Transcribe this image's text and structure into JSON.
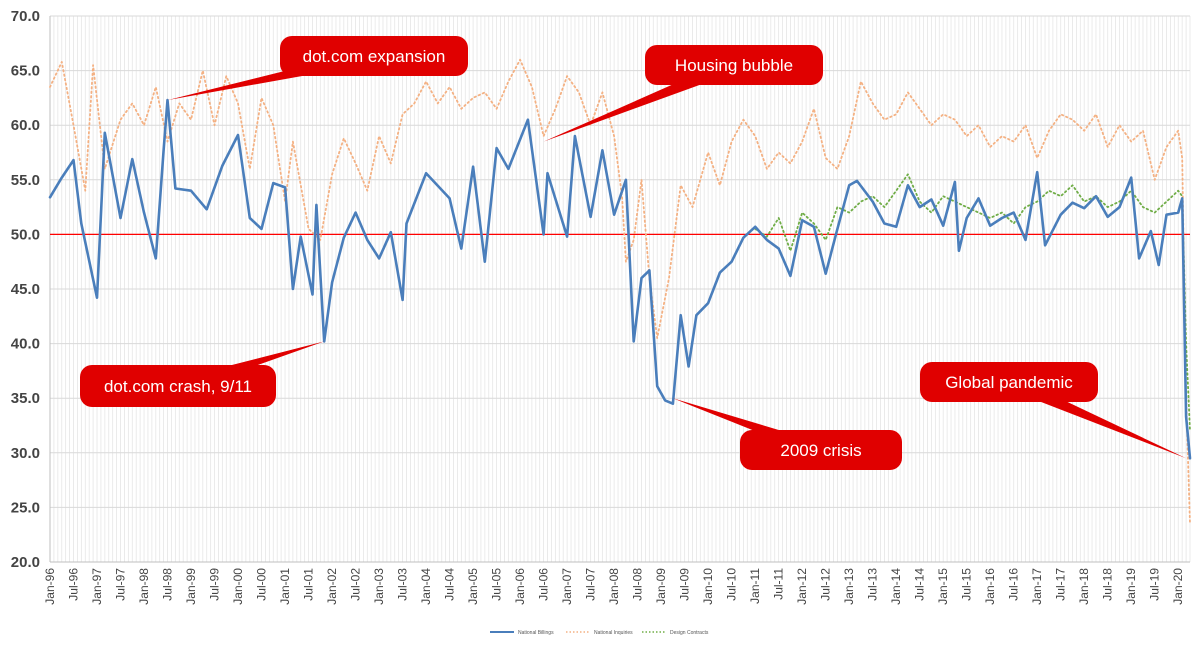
{
  "chart_data": {
    "type": "line",
    "title": "",
    "xlabel": "",
    "ylabel": "",
    "ylim": [
      20,
      70
    ],
    "yticks": [
      "20.0",
      "25.0",
      "30.0",
      "35.0",
      "40.0",
      "45.0",
      "50.0",
      "55.0",
      "60.0",
      "65.0",
      "70.0"
    ],
    "x_start": "Jan-96",
    "x_end": "Apr-20",
    "xticks": [
      "Jan-96",
      "Jul-96",
      "Jan-97",
      "Jul-97",
      "Jan-98",
      "Jul-98",
      "Jan-99",
      "Jul-99",
      "Jan-00",
      "Jul-00",
      "Jan-01",
      "Jul-01",
      "Jan-02",
      "Jul-02",
      "Jan-03",
      "Jul-03",
      "Jan-04",
      "Jul-04",
      "Jan-05",
      "Jul-05",
      "Jan-06",
      "Jul-06",
      "Jan-07",
      "Jul-07",
      "Jan-08",
      "Jul-08",
      "Jan-09",
      "Jul-09",
      "Jan-10",
      "Jul-10",
      "Jan-11",
      "Jul-11",
      "Jan-12",
      "Jul-12",
      "Jan-13",
      "Jul-13",
      "Jan-14",
      "Jul-14",
      "Jan-15",
      "Jul-15",
      "Jan-16",
      "Jul-16",
      "Jan-17",
      "Jul-17",
      "Jan-18",
      "Jul-18",
      "Jan-19",
      "Jul-19",
      "Jan-20"
    ],
    "grid": true,
    "legend_position": "bottom",
    "reference_line": {
      "y": 50,
      "color": "#ff0000"
    },
    "series": [
      {
        "name": "National Billings",
        "color": "#4a7ebb",
        "style": "solid",
        "points": [
          [
            "Jan-96",
            53.4
          ],
          [
            "Apr-96",
            55.2
          ],
          [
            "Jul-96",
            56.8
          ],
          [
            "Sep-96",
            51.0
          ],
          [
            "Jan-97",
            44.2
          ],
          [
            "Mar-97",
            59.3
          ],
          [
            "Jul-97",
            51.5
          ],
          [
            "Oct-97",
            56.9
          ],
          [
            "Jan-98",
            52.0
          ],
          [
            "Apr-98",
            47.8
          ],
          [
            "Jun-98",
            57.7
          ],
          [
            "Jul-98",
            62.3
          ],
          [
            "Sep-98",
            54.2
          ],
          [
            "Jan-99",
            54.0
          ],
          [
            "May-99",
            52.3
          ],
          [
            "Sep-99",
            56.3
          ],
          [
            "Jan-00",
            59.1
          ],
          [
            "Apr-00",
            51.5
          ],
          [
            "Jul-00",
            50.5
          ],
          [
            "Oct-00",
            54.7
          ],
          [
            "Jan-01",
            54.3
          ],
          [
            "Mar-01",
            45.0
          ],
          [
            "May-01",
            49.8
          ],
          [
            "Aug-01",
            44.5
          ],
          [
            "Sep-01",
            52.7
          ],
          [
            "Nov-01",
            40.2
          ],
          [
            "Jan-02",
            45.6
          ],
          [
            "Apr-02",
            49.7
          ],
          [
            "Jul-02",
            52.0
          ],
          [
            "Oct-02",
            49.5
          ],
          [
            "Jan-03",
            47.8
          ],
          [
            "Apr-03",
            50.2
          ],
          [
            "Jul-03",
            44.0
          ],
          [
            "Aug-03",
            51.0
          ],
          [
            "Jan-04",
            55.6
          ],
          [
            "Jul-04",
            53.3
          ],
          [
            "Oct-04",
            48.7
          ],
          [
            "Jan-05",
            56.2
          ],
          [
            "Apr-05",
            47.5
          ],
          [
            "Jul-05",
            57.9
          ],
          [
            "Oct-05",
            56.0
          ],
          [
            "Mar-06",
            60.5
          ],
          [
            "Jul-06",
            50.0
          ],
          [
            "Aug-06",
            55.6
          ],
          [
            "Jan-07",
            49.8
          ],
          [
            "Mar-07",
            59.0
          ],
          [
            "Jul-07",
            51.6
          ],
          [
            "Oct-07",
            57.7
          ],
          [
            "Jan-08",
            51.8
          ],
          [
            "Apr-08",
            55.0
          ],
          [
            "Jun-08",
            40.2
          ],
          [
            "Aug-08",
            46.0
          ],
          [
            "Oct-08",
            46.7
          ],
          [
            "Dec-08",
            36.1
          ],
          [
            "Feb-09",
            34.8
          ],
          [
            "Apr-09",
            34.5
          ],
          [
            "Jun-09",
            42.6
          ],
          [
            "Aug-09",
            37.9
          ],
          [
            "Oct-09",
            42.6
          ],
          [
            "Jan-10",
            43.7
          ],
          [
            "Apr-10",
            46.5
          ],
          [
            "Jul-10",
            47.5
          ],
          [
            "Oct-10",
            49.7
          ],
          [
            "Jan-11",
            50.7
          ],
          [
            "Apr-11",
            49.5
          ],
          [
            "Jul-11",
            48.7
          ],
          [
            "Oct-11",
            46.2
          ],
          [
            "Jan-12",
            51.3
          ],
          [
            "Apr-12",
            50.7
          ],
          [
            "Jul-12",
            46.4
          ],
          [
            "Oct-12",
            50.5
          ],
          [
            "Jan-13",
            54.5
          ],
          [
            "Mar-13",
            54.9
          ],
          [
            "Jul-13",
            53.0
          ],
          [
            "Oct-13",
            51.0
          ],
          [
            "Jan-14",
            50.7
          ],
          [
            "Apr-14",
            54.5
          ],
          [
            "Jul-14",
            52.5
          ],
          [
            "Oct-14",
            53.2
          ],
          [
            "Jan-15",
            50.8
          ],
          [
            "Apr-15",
            54.8
          ],
          [
            "May-15",
            48.5
          ],
          [
            "Jul-15",
            51.5
          ],
          [
            "Oct-15",
            53.3
          ],
          [
            "Jan-16",
            50.8
          ],
          [
            "Apr-16",
            51.5
          ],
          [
            "Jul-16",
            52.0
          ],
          [
            "Oct-16",
            49.5
          ],
          [
            "Jan-17",
            55.7
          ],
          [
            "Mar-17",
            49.0
          ],
          [
            "Jul-17",
            51.8
          ],
          [
            "Oct-17",
            52.9
          ],
          [
            "Jan-18",
            52.4
          ],
          [
            "Apr-18",
            53.5
          ],
          [
            "Jul-18",
            51.6
          ],
          [
            "Oct-18",
            52.5
          ],
          [
            "Jan-19",
            55.2
          ],
          [
            "Mar-19",
            47.8
          ],
          [
            "Jun-19",
            50.3
          ],
          [
            "Aug-19",
            47.2
          ],
          [
            "Oct-19",
            51.8
          ],
          [
            "Jan-20",
            52.0
          ],
          [
            "Feb-20",
            53.3
          ],
          [
            "Mar-20",
            33.3
          ],
          [
            "Apr-20",
            29.5
          ]
        ]
      },
      {
        "name": "National Inquiries",
        "color": "#f4b183",
        "style": "dotted",
        "points": [
          [
            "Jan-96",
            63.5
          ],
          [
            "Apr-96",
            65.8
          ],
          [
            "Jul-96",
            60.0
          ],
          [
            "Oct-96",
            54.0
          ],
          [
            "Dec-96",
            65.5
          ],
          [
            "Mar-97",
            56.0
          ],
          [
            "Jul-97",
            60.5
          ],
          [
            "Oct-97",
            62.0
          ],
          [
            "Jan-98",
            60.0
          ],
          [
            "Apr-98",
            63.5
          ],
          [
            "Jul-98",
            58.5
          ],
          [
            "Oct-98",
            62.0
          ],
          [
            "Jan-99",
            60.5
          ],
          [
            "Apr-99",
            65.0
          ],
          [
            "Jul-99",
            60.0
          ],
          [
            "Oct-99",
            64.5
          ],
          [
            "Jan-00",
            62.0
          ],
          [
            "Apr-00",
            56.0
          ],
          [
            "Jul-00",
            62.5
          ],
          [
            "Oct-00",
            60.0
          ],
          [
            "Jan-01",
            53.0
          ],
          [
            "Mar-01",
            58.5
          ],
          [
            "Jul-01",
            50.5
          ],
          [
            "Oct-01",
            49.5
          ],
          [
            "Jan-02",
            55.5
          ],
          [
            "Apr-02",
            58.8
          ],
          [
            "Jul-02",
            56.5
          ],
          [
            "Oct-02",
            54.0
          ],
          [
            "Jan-03",
            59.0
          ],
          [
            "Apr-03",
            56.5
          ],
          [
            "Jul-03",
            61.0
          ],
          [
            "Oct-03",
            62.0
          ],
          [
            "Jan-04",
            64.0
          ],
          [
            "Apr-04",
            62.0
          ],
          [
            "Jul-04",
            63.5
          ],
          [
            "Oct-04",
            61.5
          ],
          [
            "Jan-05",
            62.5
          ],
          [
            "Apr-05",
            63.0
          ],
          [
            "Jul-05",
            61.5
          ],
          [
            "Oct-05",
            64.0
          ],
          [
            "Jan-06",
            66.0
          ],
          [
            "Apr-06",
            63.5
          ],
          [
            "Jul-06",
            59.0
          ],
          [
            "Oct-06",
            61.5
          ],
          [
            "Jan-07",
            64.5
          ],
          [
            "Apr-07",
            63.0
          ],
          [
            "Jul-07",
            60.0
          ],
          [
            "Oct-07",
            63.0
          ],
          [
            "Jan-08",
            59.0
          ],
          [
            "Mar-08",
            53.5
          ],
          [
            "Apr-08",
            47.5
          ],
          [
            "Jun-08",
            49.5
          ],
          [
            "Aug-08",
            55.0
          ],
          [
            "Oct-08",
            46.0
          ],
          [
            "Dec-08",
            40.5
          ],
          [
            "Mar-09",
            46.0
          ],
          [
            "Jun-09",
            54.5
          ],
          [
            "Sep-09",
            52.5
          ],
          [
            "Jan-10",
            57.5
          ],
          [
            "Apr-10",
            54.5
          ],
          [
            "Jul-10",
            58.5
          ],
          [
            "Oct-10",
            60.5
          ],
          [
            "Jan-11",
            59.0
          ],
          [
            "Apr-11",
            56.0
          ],
          [
            "Jul-11",
            57.5
          ],
          [
            "Oct-11",
            56.5
          ],
          [
            "Jan-12",
            58.5
          ],
          [
            "Apr-12",
            61.5
          ],
          [
            "Jul-12",
            57.0
          ],
          [
            "Oct-12",
            56.0
          ],
          [
            "Jan-13",
            59.0
          ],
          [
            "Apr-13",
            64.0
          ],
          [
            "Jul-13",
            62.0
          ],
          [
            "Oct-13",
            60.5
          ],
          [
            "Jan-14",
            61.0
          ],
          [
            "Apr-14",
            63.0
          ],
          [
            "Jul-14",
            61.5
          ],
          [
            "Oct-14",
            60.0
          ],
          [
            "Jan-15",
            61.0
          ],
          [
            "Apr-15",
            60.5
          ],
          [
            "Jul-15",
            59.0
          ],
          [
            "Oct-15",
            60.0
          ],
          [
            "Jan-16",
            58.0
          ],
          [
            "Apr-16",
            59.0
          ],
          [
            "Jul-16",
            58.5
          ],
          [
            "Oct-16",
            60.0
          ],
          [
            "Jan-17",
            57.0
          ],
          [
            "Apr-17",
            59.5
          ],
          [
            "Jul-17",
            61.0
          ],
          [
            "Oct-17",
            60.5
          ],
          [
            "Jan-18",
            59.5
          ],
          [
            "Apr-18",
            61.0
          ],
          [
            "Jul-18",
            58.0
          ],
          [
            "Oct-18",
            60.0
          ],
          [
            "Jan-19",
            58.5
          ],
          [
            "Apr-19",
            59.5
          ],
          [
            "Jul-19",
            55.0
          ],
          [
            "Oct-19",
            58.0
          ],
          [
            "Jan-20",
            59.5
          ],
          [
            "Feb-20",
            57.0
          ],
          [
            "Mar-20",
            35.0
          ],
          [
            "Apr-20",
            23.5
          ]
        ]
      },
      {
        "name": "Design Contracts",
        "color": "#70ad47",
        "style": "dotted",
        "points": [
          [
            "Jan-11",
            50.5
          ],
          [
            "Apr-11",
            49.8
          ],
          [
            "Jul-11",
            51.5
          ],
          [
            "Oct-11",
            48.5
          ],
          [
            "Jan-12",
            52.0
          ],
          [
            "Apr-12",
            51.0
          ],
          [
            "Jul-12",
            49.5
          ],
          [
            "Oct-12",
            52.5
          ],
          [
            "Jan-13",
            52.0
          ],
          [
            "Apr-13",
            53.0
          ],
          [
            "Jul-13",
            53.5
          ],
          [
            "Oct-13",
            52.5
          ],
          [
            "Jan-14",
            54.0
          ],
          [
            "Apr-14",
            55.5
          ],
          [
            "Jul-14",
            53.0
          ],
          [
            "Oct-14",
            52.0
          ],
          [
            "Jan-15",
            53.5
          ],
          [
            "Apr-15",
            53.0
          ],
          [
            "Jul-15",
            52.5
          ],
          [
            "Oct-15",
            52.0
          ],
          [
            "Jan-16",
            51.5
          ],
          [
            "Apr-16",
            52.0
          ],
          [
            "Jul-16",
            51.0
          ],
          [
            "Oct-16",
            52.5
          ],
          [
            "Jan-17",
            53.0
          ],
          [
            "Apr-17",
            54.0
          ],
          [
            "Jul-17",
            53.5
          ],
          [
            "Oct-17",
            54.5
          ],
          [
            "Jan-18",
            53.0
          ],
          [
            "Apr-18",
            53.5
          ],
          [
            "Jul-18",
            52.5
          ],
          [
            "Oct-18",
            53.0
          ],
          [
            "Jan-19",
            54.0
          ],
          [
            "Apr-19",
            52.5
          ],
          [
            "Jul-19",
            52.0
          ],
          [
            "Oct-19",
            53.0
          ],
          [
            "Jan-20",
            54.0
          ],
          [
            "Feb-20",
            53.5
          ],
          [
            "Mar-20",
            40.0
          ],
          [
            "Apr-20",
            32.0
          ]
        ]
      }
    ],
    "annotations": [
      {
        "name": "dotcom-expansion",
        "text": "dot.com expansion",
        "target_x": "Jul-98",
        "target_y": 62.3
      },
      {
        "name": "housing-bubble",
        "text": "Housing bubble",
        "target_x": "Jul-06",
        "target_y": 58.5
      },
      {
        "name": "dotcom-crash",
        "text": "dot.com crash, 9/11",
        "target_x": "Nov-01",
        "target_y": 40.2
      },
      {
        "name": "crisis-2009",
        "text": "2009 crisis",
        "target_x": "Apr-09",
        "target_y": 35.0
      },
      {
        "name": "global-pandemic",
        "text": "Global pandemic",
        "target_x": "Mar-20",
        "target_y": 29.5
      }
    ]
  }
}
